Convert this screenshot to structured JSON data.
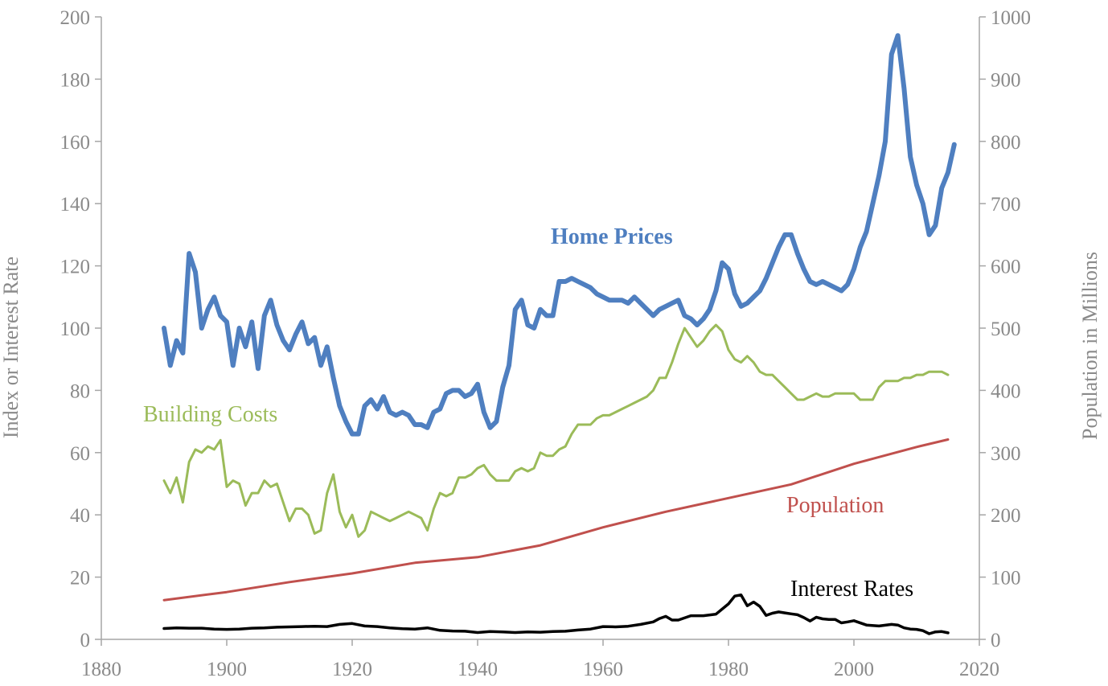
{
  "chart_data": {
    "type": "line",
    "title": "",
    "xlabel": "",
    "ylabel": "Index or Interest Rate",
    "y2label": "Population in Millions",
    "xlim": [
      1880,
      2020
    ],
    "ylim": [
      0,
      200
    ],
    "y2lim": [
      0,
      1000
    ],
    "x_ticks": [
      1880,
      1900,
      1920,
      1940,
      1960,
      1980,
      2000,
      2020
    ],
    "y_ticks": [
      0,
      20,
      40,
      60,
      80,
      100,
      120,
      140,
      160,
      180,
      200
    ],
    "y2_ticks": [
      0,
      100,
      200,
      300,
      400,
      500,
      600,
      700,
      800,
      900,
      1000
    ],
    "grid": false,
    "legend": "none",
    "series": [
      {
        "name": "Home Prices",
        "axis": "left",
        "color": "#4f7fc0",
        "x": [
          1890,
          1891,
          1892,
          1893,
          1894,
          1895,
          1896,
          1897,
          1898,
          1899,
          1900,
          1901,
          1902,
          1903,
          1904,
          1905,
          1906,
          1907,
          1908,
          1909,
          1910,
          1911,
          1912,
          1913,
          1914,
          1915,
          1916,
          1917,
          1918,
          1919,
          1920,
          1921,
          1922,
          1923,
          1924,
          1925,
          1926,
          1927,
          1928,
          1929,
          1930,
          1931,
          1932,
          1933,
          1934,
          1935,
          1936,
          1937,
          1938,
          1939,
          1940,
          1941,
          1942,
          1943,
          1944,
          1945,
          1946,
          1947,
          1948,
          1949,
          1950,
          1951,
          1952,
          1953,
          1954,
          1955,
          1956,
          1957,
          1958,
          1959,
          1960,
          1961,
          1962,
          1963,
          1964,
          1965,
          1966,
          1967,
          1968,
          1969,
          1970,
          1971,
          1972,
          1973,
          1974,
          1975,
          1976,
          1977,
          1978,
          1979,
          1980,
          1981,
          1982,
          1983,
          1984,
          1985,
          1986,
          1987,
          1988,
          1989,
          1990,
          1991,
          1992,
          1993,
          1994,
          1995,
          1996,
          1997,
          1998,
          1999,
          2000,
          2001,
          2002,
          2003,
          2004,
          2005,
          2006,
          2007,
          2008,
          2009,
          2010,
          2011,
          2012,
          2013,
          2014,
          2015,
          2016
        ],
        "y": [
          100,
          88,
          96,
          92,
          124,
          118,
          100,
          106,
          110,
          104,
          102,
          88,
          100,
          94,
          102,
          87,
          104,
          109,
          101,
          96,
          93,
          98,
          102,
          95,
          97,
          88,
          94,
          84,
          75,
          70,
          66,
          66,
          75,
          77,
          74,
          78,
          73,
          72,
          73,
          72,
          69,
          69,
          68,
          73,
          74,
          79,
          80,
          80,
          78,
          79,
          82,
          73,
          68,
          70,
          81,
          88,
          106,
          109,
          101,
          100,
          106,
          104,
          104,
          115,
          115,
          116,
          115,
          114,
          113,
          111,
          110,
          109,
          109,
          109,
          108,
          110,
          108,
          106,
          104,
          106,
          107,
          108,
          109,
          104,
          103,
          101,
          103,
          106,
          112,
          121,
          119,
          111,
          107,
          108,
          110,
          112,
          116,
          121,
          126,
          130,
          130,
          124,
          119,
          115,
          114,
          115,
          114,
          113,
          112,
          114,
          119,
          126,
          131,
          140,
          149,
          160,
          188,
          194,
          177,
          155,
          146,
          140,
          130,
          133,
          145,
          150,
          159
        ]
      },
      {
        "name": "Building Costs",
        "axis": "left",
        "color": "#9bbb59",
        "x": [
          1890,
          1891,
          1892,
          1893,
          1894,
          1895,
          1896,
          1897,
          1898,
          1899,
          1900,
          1901,
          1902,
          1903,
          1904,
          1905,
          1906,
          1907,
          1908,
          1909,
          1910,
          1911,
          1912,
          1913,
          1914,
          1915,
          1916,
          1917,
          1918,
          1919,
          1920,
          1921,
          1922,
          1923,
          1924,
          1925,
          1926,
          1927,
          1928,
          1929,
          1930,
          1931,
          1932,
          1933,
          1934,
          1935,
          1936,
          1937,
          1938,
          1939,
          1940,
          1941,
          1942,
          1943,
          1944,
          1945,
          1946,
          1947,
          1948,
          1949,
          1950,
          1951,
          1952,
          1953,
          1954,
          1955,
          1956,
          1957,
          1958,
          1959,
          1960,
          1961,
          1962,
          1963,
          1964,
          1965,
          1966,
          1967,
          1968,
          1969,
          1970,
          1971,
          1972,
          1973,
          1974,
          1975,
          1976,
          1977,
          1978,
          1979,
          1980,
          1981,
          1982,
          1983,
          1984,
          1985,
          1986,
          1987,
          1988,
          1989,
          1990,
          1991,
          1992,
          1993,
          1994,
          1995,
          1996,
          1997,
          1998,
          1999,
          2000,
          2001,
          2002,
          2003,
          2004,
          2005,
          2006,
          2007,
          2008,
          2009,
          2010,
          2011,
          2012,
          2013,
          2014,
          2015
        ],
        "y": [
          51,
          47,
          52,
          44,
          57,
          61,
          60,
          62,
          61,
          64,
          49,
          51,
          50,
          43,
          47,
          47,
          51,
          49,
          50,
          44,
          38,
          42,
          42,
          40,
          34,
          35,
          47,
          53,
          41,
          36,
          40,
          33,
          35,
          41,
          40,
          39,
          38,
          39,
          40,
          41,
          40,
          39,
          35,
          42,
          47,
          46,
          47,
          52,
          52,
          53,
          55,
          56,
          53,
          51,
          51,
          51,
          54,
          55,
          54,
          55,
          60,
          59,
          59,
          61,
          62,
          66,
          69,
          69,
          69,
          71,
          72,
          72,
          73,
          74,
          75,
          76,
          77,
          78,
          80,
          84,
          84,
          89,
          95,
          100,
          97,
          94,
          96,
          99,
          101,
          99,
          93,
          90,
          89,
          91,
          89,
          86,
          85,
          85,
          83,
          81,
          79,
          77,
          77,
          78,
          79,
          78,
          78,
          79,
          79,
          79,
          79,
          77,
          77,
          77,
          81,
          83,
          83,
          83,
          84,
          84,
          85,
          85,
          86,
          86,
          86,
          85
        ]
      },
      {
        "name": "Population",
        "axis": "right",
        "color": "#c0504d",
        "x": [
          1890,
          1900,
          1910,
          1920,
          1930,
          1940,
          1950,
          1960,
          1970,
          1980,
          1990,
          2000,
          2010,
          2015
        ],
        "y": [
          63,
          76,
          92,
          106,
          123,
          132,
          151,
          180,
          205,
          227,
          249,
          282,
          309,
          321
        ]
      },
      {
        "name": "Interest Rates",
        "axis": "left",
        "color": "#000000",
        "x": [
          1890,
          1892,
          1894,
          1896,
          1898,
          1900,
          1902,
          1904,
          1906,
          1908,
          1910,
          1912,
          1914,
          1916,
          1918,
          1920,
          1922,
          1924,
          1926,
          1928,
          1930,
          1932,
          1934,
          1936,
          1938,
          1940,
          1942,
          1944,
          1946,
          1948,
          1950,
          1952,
          1954,
          1956,
          1958,
          1960,
          1962,
          1964,
          1966,
          1968,
          1969,
          1970,
          1971,
          1972,
          1974,
          1976,
          1978,
          1980,
          1981,
          1982,
          1983,
          1984,
          1985,
          1986,
          1987,
          1988,
          1989,
          1990,
          1991,
          1992,
          1993,
          1994,
          1995,
          1996,
          1997,
          1998,
          1999,
          2000,
          2002,
          2004,
          2006,
          2007,
          2008,
          2009,
          2010,
          2011,
          2012,
          2013,
          2014,
          2015
        ],
        "y": [
          3.5,
          3.7,
          3.6,
          3.6,
          3.3,
          3.2,
          3.3,
          3.6,
          3.7,
          3.9,
          4.0,
          4.1,
          4.2,
          4.1,
          4.8,
          5.1,
          4.3,
          4.1,
          3.7,
          3.4,
          3.3,
          3.7,
          2.9,
          2.7,
          2.6,
          2.2,
          2.5,
          2.4,
          2.2,
          2.4,
          2.3,
          2.5,
          2.6,
          3.0,
          3.3,
          4.1,
          4.0,
          4.2,
          4.8,
          5.6,
          6.7,
          7.4,
          6.2,
          6.2,
          7.6,
          7.6,
          8.1,
          11.4,
          13.9,
          14.3,
          10.8,
          12.0,
          10.6,
          7.7,
          8.4,
          8.8,
          8.5,
          8.2,
          7.9,
          7.0,
          5.9,
          7.1,
          6.6,
          6.4,
          6.4,
          5.3,
          5.6,
          6.0,
          4.6,
          4.3,
          4.8,
          4.6,
          3.7,
          3.3,
          3.2,
          2.8,
          1.8,
          2.4,
          2.5,
          2.1
        ]
      }
    ],
    "annotations": [
      {
        "text": "Home Prices",
        "series": "Home Prices"
      },
      {
        "text": "Building Costs",
        "series": "Building Costs"
      },
      {
        "text": "Population",
        "series": "Population"
      },
      {
        "text": "Interest Rates",
        "series": "Interest Rates"
      }
    ]
  }
}
